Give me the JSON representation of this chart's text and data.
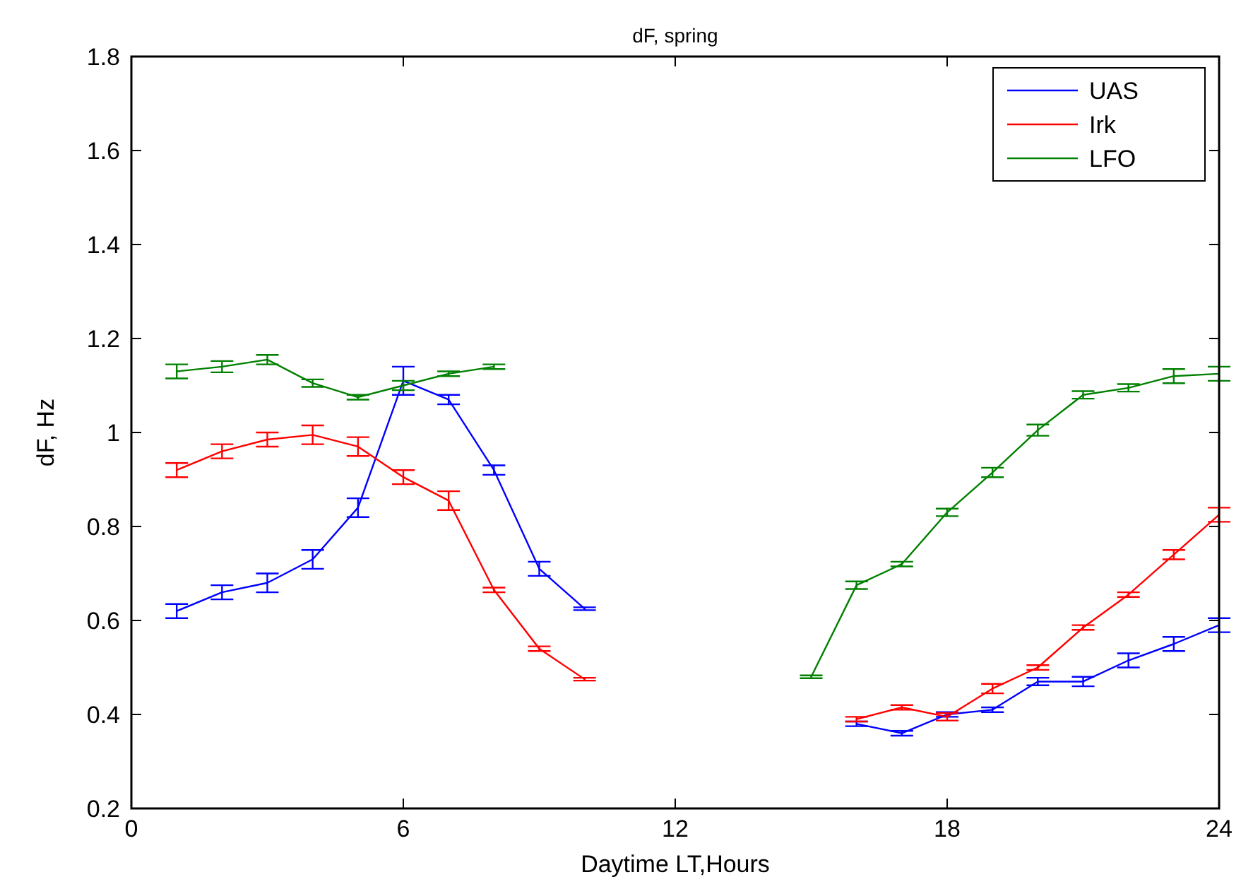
{
  "chart_data": {
    "type": "line",
    "title": "dF, spring",
    "xlabel": "Daytime LT,Hours",
    "ylabel": "dF, Hz",
    "x": [
      1,
      2,
      3,
      4,
      5,
      6,
      7,
      8,
      9,
      10,
      15,
      16,
      17,
      18,
      19,
      20,
      21,
      22,
      23,
      24
    ],
    "xlim": [
      0,
      24
    ],
    "xticks": [
      0,
      6,
      12,
      18,
      24
    ],
    "ylim": [
      0.2,
      1.8
    ],
    "yticks": [
      0.2,
      0.4,
      0.6,
      0.8,
      1,
      1.2,
      1.4,
      1.6,
      1.8
    ],
    "grid": false,
    "legend": "top right",
    "line_style": "solid",
    "series": [
      {
        "name": "UAS",
        "color": "#0000ff",
        "values": [
          0.62,
          0.66,
          0.68,
          0.73,
          0.84,
          1.11,
          1.07,
          0.92,
          0.71,
          0.625,
          null,
          0.38,
          0.36,
          0.4,
          0.41,
          0.47,
          0.47,
          0.515,
          0.55,
          0.59
        ],
        "errors": [
          0.015,
          0.015,
          0.02,
          0.02,
          0.02,
          0.03,
          0.01,
          0.01,
          0.015,
          0.003,
          null,
          0.005,
          0.005,
          0.005,
          0.005,
          0.008,
          0.01,
          0.015,
          0.015,
          0.015
        ]
      },
      {
        "name": "Irk",
        "color": "#ff0000",
        "values": [
          0.92,
          0.96,
          0.985,
          0.995,
          0.97,
          0.905,
          0.855,
          0.665,
          0.54,
          0.475,
          null,
          0.39,
          0.415,
          0.395,
          0.455,
          0.5,
          0.585,
          0.655,
          0.74,
          0.825
        ],
        "errors": [
          0.015,
          0.015,
          0.015,
          0.02,
          0.02,
          0.015,
          0.02,
          0.005,
          0.005,
          0.003,
          null,
          0.005,
          0.005,
          0.008,
          0.01,
          0.005,
          0.005,
          0.005,
          0.01,
          0.015
        ]
      },
      {
        "name": "LFO",
        "color": "#008000",
        "values": [
          1.13,
          1.14,
          1.155,
          1.105,
          1.075,
          1.1,
          1.125,
          1.14,
          null,
          null,
          0.48,
          0.675,
          0.72,
          0.83,
          0.915,
          1.005,
          1.08,
          1.095,
          1.12,
          1.125
        ],
        "errors": [
          0.015,
          0.012,
          0.01,
          0.008,
          0.005,
          0.01,
          0.005,
          0.005,
          null,
          null,
          0.003,
          0.008,
          0.005,
          0.008,
          0.01,
          0.012,
          0.008,
          0.008,
          0.015,
          0.015
        ]
      }
    ]
  }
}
